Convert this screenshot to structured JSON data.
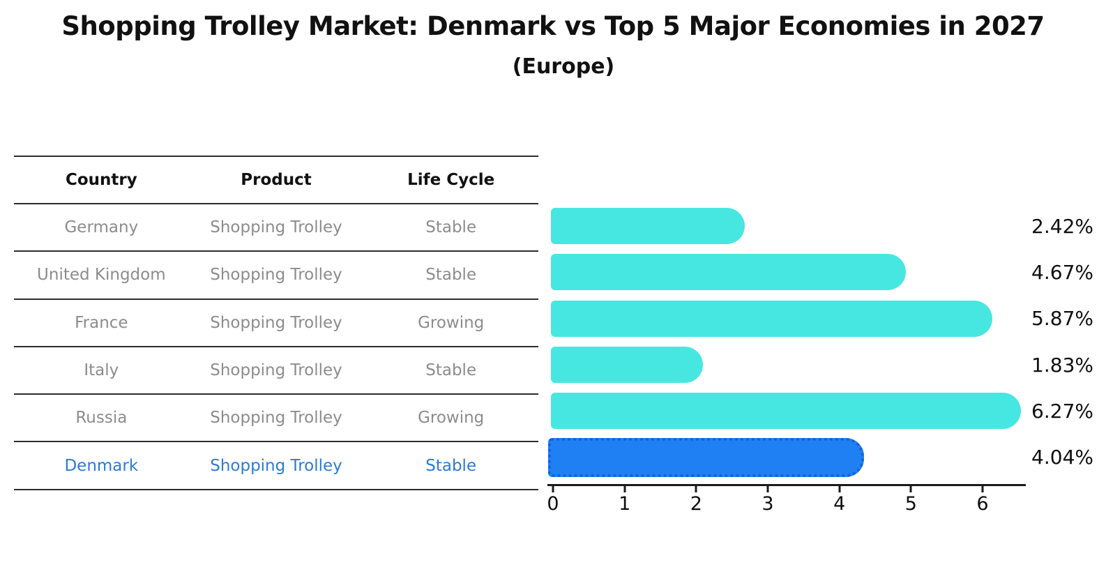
{
  "header": {
    "title": "Shopping Trolley Market: Denmark vs Top 5 Major Economies in 2027",
    "subtitle": "(Europe)"
  },
  "table": {
    "columns": [
      "Country",
      "Product",
      "Life Cycle"
    ],
    "rows": [
      {
        "country": "Germany",
        "product": "Shopping Trolley",
        "life_cycle": "Stable"
      },
      {
        "country": "United Kingdom",
        "product": "Shopping Trolley",
        "life_cycle": "Stable"
      },
      {
        "country": "France",
        "product": "Shopping Trolley",
        "life_cycle": "Growing"
      },
      {
        "country": "Italy",
        "product": "Shopping Trolley",
        "life_cycle": "Stable"
      },
      {
        "country": "Russia",
        "product": "Shopping Trolley",
        "life_cycle": "Growing"
      },
      {
        "country": "Denmark",
        "product": "Shopping Trolley",
        "life_cycle": "Stable"
      }
    ]
  },
  "chart_data": {
    "type": "bar",
    "orientation": "horizontal",
    "title": "Shopping Trolley Market: Denmark vs Top 5 Major Economies in 2027",
    "subtitle": "(Europe)",
    "categories": [
      "Germany",
      "United Kingdom",
      "France",
      "Italy",
      "Russia",
      "Denmark"
    ],
    "values": [
      2.42,
      4.67,
      5.87,
      1.83,
      6.27,
      4.04
    ],
    "value_labels": [
      "2.42%",
      "4.67%",
      "5.87%",
      "1.83%",
      "6.27%",
      "4.04%"
    ],
    "highlight_index": 5,
    "highlight_category": "Denmark",
    "x_tick_labels": [
      "0",
      "1",
      "2",
      "3",
      "4",
      "5",
      "6"
    ],
    "xlim": [
      0,
      6.6
    ],
    "grid": false,
    "legend": false,
    "bar_color": "#47e7e1",
    "highlight_color": "#1e80f2",
    "highlight_edge_color": "#1461d4",
    "highlight_text_color": "#2b7bd4",
    "xlabel": "",
    "ylabel": ""
  }
}
